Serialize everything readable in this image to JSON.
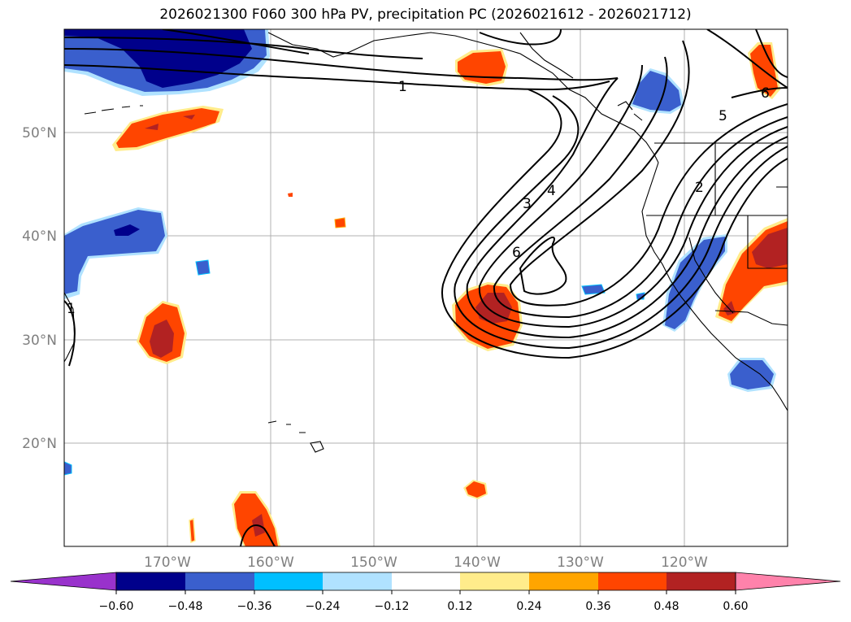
{
  "title": "2026021300 F060 300 hPa PV, precipitation PC (2026021612 - 2026021712)",
  "lat_labels": [
    "50°N",
    "40°N",
    "30°N",
    "20°N"
  ],
  "lon_labels": [
    "170°W",
    "160°W",
    "150°W",
    "140°W",
    "130°W",
    "120°W"
  ],
  "colorbar": {
    "ticks": [
      "−0.60",
      "−0.48",
      "−0.36",
      "−0.24",
      "−0.12",
      "0.12",
      "0.24",
      "0.36",
      "0.48",
      "0.60"
    ],
    "colors": [
      "#9932cc",
      "#00008b",
      "#3a5fcd",
      "#00bfff",
      "#b0e2ff",
      "#ffffff",
      "#ffec8b",
      "#ffa500",
      "#ff4500",
      "#b22222",
      "#ff82ab"
    ]
  },
  "contour_labels": [
    "1",
    "1",
    "2",
    "3",
    "4",
    "5",
    "6",
    "6"
  ],
  "colors": {
    "grid": "#b0b0b0",
    "axis_label": "#7f7f7f",
    "neg_light": "#b0e2ff",
    "neg_mid": "#00bfff",
    "neg_blue": "#3a5fcd",
    "neg_dark": "#00008b",
    "pos_yellow": "#ffec8b",
    "pos_orange": "#ffa500",
    "pos_red": "#ff4500",
    "pos_dark": "#b22222"
  }
}
